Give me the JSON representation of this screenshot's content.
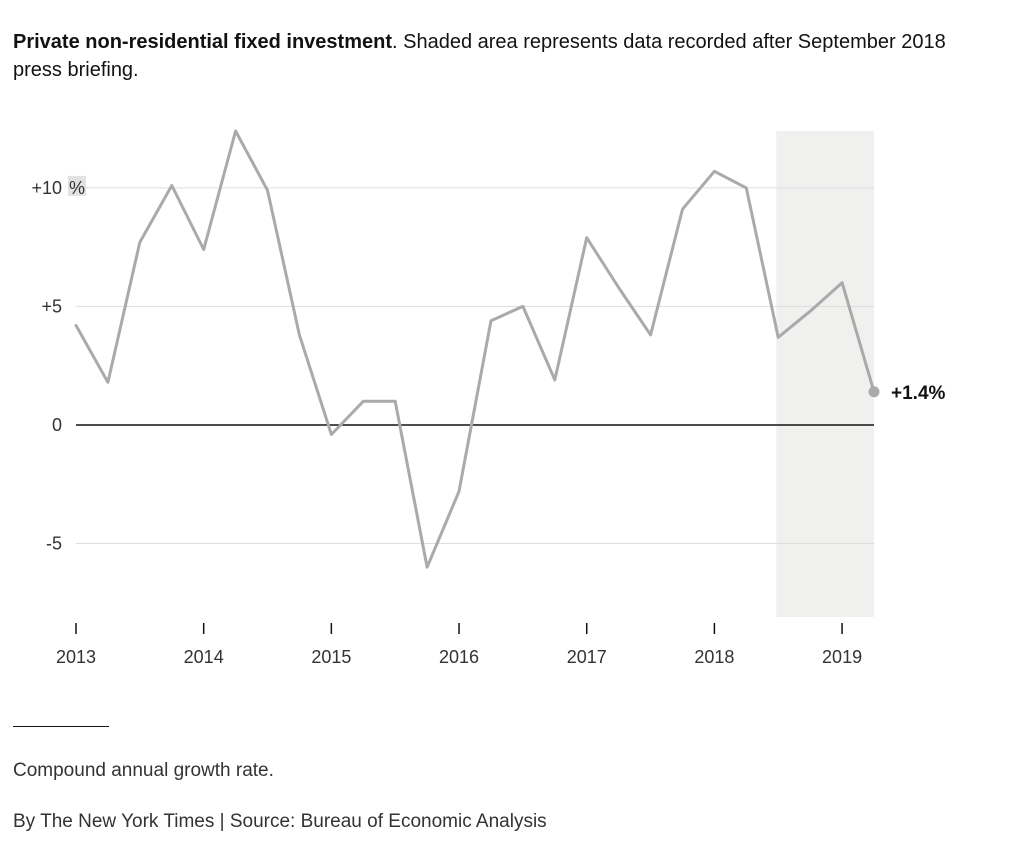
{
  "header": {
    "title_bold": "Private non-residential fixed investment",
    "title_rest": ". Shaded area represents data recorded after September 2018 press briefing."
  },
  "footer": {
    "footnote": "Compound annual growth rate.",
    "credit": "By The New York Times | Source: Bureau of Economic Analysis"
  },
  "colors": {
    "line": "#aaaaaa",
    "shade": "#f0f0ef",
    "grid": "#dddddd",
    "zero_line": "#121212",
    "unit_bg": "#e2e2e2"
  },
  "chart_data": {
    "type": "line",
    "title": "Private non-residential fixed investment",
    "xlabel": "",
    "ylabel": "",
    "unit_label": "%",
    "ylim": [
      -8.1,
      12.4
    ],
    "y_ticks": [
      {
        "value": 10,
        "label": "+10"
      },
      {
        "value": 5,
        "label": "+5"
      },
      {
        "value": 0,
        "label": "0"
      },
      {
        "value": -5,
        "label": "-5"
      }
    ],
    "x_ticks": [
      {
        "value": 2013.0,
        "label": "2013"
      },
      {
        "value": 2014.0,
        "label": "2014"
      },
      {
        "value": 2015.0,
        "label": "2015"
      },
      {
        "value": 2016.0,
        "label": "2016"
      },
      {
        "value": 2017.0,
        "label": "2017"
      },
      {
        "value": 2018.0,
        "label": "2018"
      },
      {
        "value": 2019.0,
        "label": "2019"
      }
    ],
    "shaded_range": [
      2018.5,
      2019.25
    ],
    "grid": true,
    "series": [
      {
        "x": [
          2013.0,
          2013.25,
          2013.5,
          2013.75,
          2014.0,
          2014.25,
          2014.5,
          2014.75,
          2015.0,
          2015.25,
          2015.5,
          2015.75,
          2016.0,
          2016.25,
          2016.5,
          2016.75,
          2017.0,
          2017.25,
          2017.5,
          2017.75,
          2018.0,
          2018.25,
          2018.5,
          2018.75,
          2019.0,
          2019.25
        ],
        "values": [
          4.2,
          1.8,
          7.7,
          10.1,
          7.4,
          12.4,
          9.9,
          3.8,
          -0.4,
          1.0,
          1.0,
          -6.0,
          -2.8,
          4.4,
          5.0,
          1.9,
          7.9,
          5.8,
          3.8,
          9.1,
          10.7,
          10.0,
          3.7,
          4.8,
          6.0,
          1.4
        ]
      }
    ],
    "annotations": [
      {
        "x": 2019.25,
        "y": 1.4,
        "text": "+1.4%"
      }
    ]
  }
}
